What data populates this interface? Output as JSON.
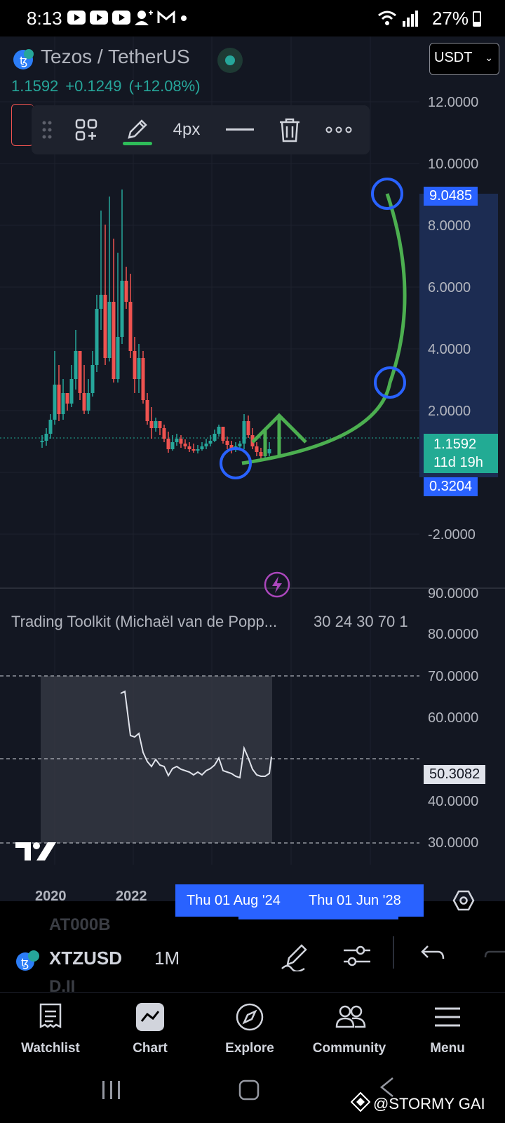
{
  "status_bar": {
    "time": "8:13",
    "battery": "27%"
  },
  "header": {
    "pair": "Tezos / TetherUS",
    "currency": "USDT",
    "price": "1.1592",
    "change": "+0.1249",
    "change_pct": "(+12.08%)"
  },
  "draw_toolbar": {
    "stroke_width": "4px",
    "icons": [
      "drag-handle-icon",
      "add-widget-icon",
      "pencil-icon",
      "line-style-icon",
      "trash-icon",
      "more-icon"
    ]
  },
  "price_axis": {
    "ticks": [
      "12.0000",
      "10.0000",
      "8.0000",
      "6.0000",
      "4.0000",
      "2.0000",
      "-2.0000",
      "90.0000",
      "80.0000",
      "70.0000",
      "60.0000",
      "40.0000",
      "30.0000"
    ],
    "tag_top": "9.0485",
    "tag_price": "1.1592",
    "tag_countdown": "11d 19h",
    "tag_bottom": "0.3204",
    "indicator_value": "50.3082"
  },
  "indicator": {
    "name": "Trading Toolkit (Michaël van de Popp...",
    "params": "30 24 30 70 1"
  },
  "time_axis": {
    "labels": [
      "2020",
      "2022"
    ],
    "range_start": "Thu 01 Aug '24",
    "range_end": "Thu 01 Jun '28"
  },
  "symbol_bar": {
    "symbol": "XTZUSD",
    "interval": "1M",
    "ghost_top": "AT000B",
    "ghost_bottom": "D.II"
  },
  "bottom_nav": [
    {
      "label": "Watchlist",
      "icon": "watchlist-icon"
    },
    {
      "label": "Chart",
      "icon": "chart-icon"
    },
    {
      "label": "Explore",
      "icon": "compass-icon"
    },
    {
      "label": "Community",
      "icon": "community-icon"
    },
    {
      "label": "Menu",
      "icon": "menu-icon"
    }
  ],
  "watermark": "@STORMY GAI",
  "colors": {
    "up": "#26a69a",
    "down": "#ef5350",
    "accent": "#2962ff",
    "drawing": "#4caf50",
    "background": "#131722"
  }
}
